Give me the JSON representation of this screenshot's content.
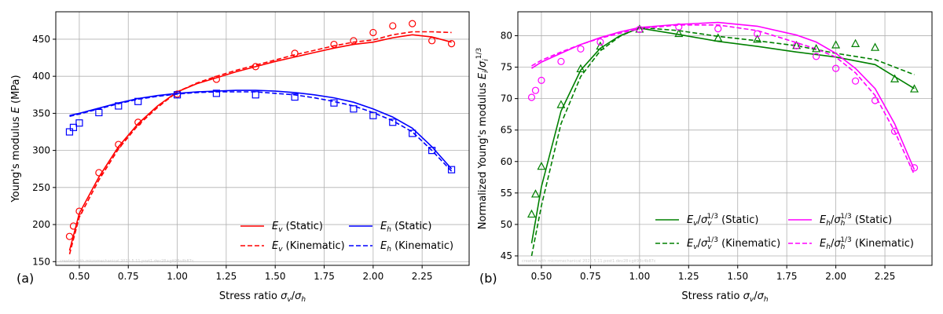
{
  "chart_data": [
    {
      "type": "line",
      "panel_label": "(a)",
      "xlabel": "Stress ratio σv/σh",
      "ylabel": "Young's modulus E (MPa)",
      "xlim": [
        0.38,
        2.49
      ],
      "ylim": [
        145,
        487
      ],
      "xticks": [
        0.5,
        0.75,
        1.0,
        1.25,
        1.5,
        1.75,
        2.0,
        2.25
      ],
      "xtick_labels": [
        "0.50",
        "0.75",
        "1.00",
        "1.25",
        "1.50",
        "1.75",
        "2.00",
        "2.25"
      ],
      "yticks": [
        150,
        200,
        250,
        300,
        350,
        400,
        450
      ],
      "ytick_labels": [
        "150",
        "200",
        "250",
        "300",
        "350",
        "400",
        "450"
      ],
      "grid": true,
      "legend_position": "lower-right",
      "watermark": "created with micromechanical 2025.5.11.post1.dev28+git98c4b87c",
      "series": [
        {
          "name": "Ev (Static)",
          "label_main": "E",
          "label_sub": "v",
          "label_tail": " (Static)",
          "style": "line",
          "dash": "solid",
          "color": "#ff0000",
          "x": [
            0.45,
            0.5,
            0.6,
            0.7,
            0.8,
            0.9,
            1.0,
            1.1,
            1.2,
            1.3,
            1.4,
            1.5,
            1.6,
            1.7,
            1.8,
            1.9,
            2.0,
            2.1,
            2.2,
            2.3,
            2.4
          ],
          "y": [
            165,
            215,
            264,
            305,
            336,
            360,
            379,
            390,
            398,
            406,
            413,
            420,
            426,
            432,
            438,
            443,
            446,
            452,
            456,
            453,
            446
          ]
        },
        {
          "name": "Ev (Kinematic)",
          "label_main": "E",
          "label_sub": "v",
          "label_tail": " (Kinematic)",
          "style": "line",
          "dash": "dashed",
          "color": "#ff0000",
          "x": [
            0.45,
            0.5,
            0.6,
            0.7,
            0.8,
            0.9,
            1.0,
            1.1,
            1.2,
            1.3,
            1.4,
            1.5,
            1.6,
            1.7,
            1.8,
            1.9,
            2.0,
            2.1,
            2.2,
            2.3,
            2.4
          ],
          "y": [
            160,
            210,
            260,
            302,
            334,
            358,
            379,
            391,
            400,
            408,
            415,
            422,
            429,
            435,
            441,
            446,
            449,
            456,
            460,
            460,
            459
          ]
        },
        {
          "name": "Eh (Static)",
          "label_main": "E",
          "label_sub": "h",
          "label_tail": " (Static)",
          "style": "line",
          "dash": "solid",
          "color": "#0000ff",
          "x": [
            0.45,
            0.5,
            0.6,
            0.7,
            0.8,
            0.9,
            1.0,
            1.1,
            1.2,
            1.3,
            1.4,
            1.5,
            1.6,
            1.7,
            1.8,
            1.9,
            2.0,
            2.1,
            2.2,
            2.3,
            2.4
          ],
          "y": [
            347,
            350,
            357,
            364,
            370,
            374,
            377,
            379,
            380,
            381,
            381,
            380,
            378,
            375,
            371,
            365,
            356,
            345,
            330,
            305,
            275
          ]
        },
        {
          "name": "Eh (Kinematic)",
          "label_main": "E",
          "label_sub": "h",
          "label_tail": " (Kinematic)",
          "style": "line",
          "dash": "dashed",
          "color": "#0000ff",
          "x": [
            0.45,
            0.5,
            0.6,
            0.7,
            0.8,
            0.9,
            1.0,
            1.1,
            1.2,
            1.3,
            1.4,
            1.5,
            1.6,
            1.7,
            1.8,
            1.9,
            2.0,
            2.1,
            2.2,
            2.3,
            2.4
          ],
          "y": [
            346,
            349,
            356,
            363,
            369,
            373,
            376,
            378,
            379,
            379,
            379,
            377,
            375,
            371,
            366,
            360,
            351,
            340,
            325,
            300,
            272
          ]
        },
        {
          "name": "Ev measured",
          "style": "marker",
          "marker": "circle",
          "color": "#ff0000",
          "x": [
            0.45,
            0.47,
            0.5,
            0.6,
            0.7,
            0.8,
            1.0,
            1.2,
            1.4,
            1.6,
            1.8,
            1.9,
            2.0,
            2.1,
            2.2,
            2.3,
            2.4
          ],
          "y": [
            184,
            198,
            218,
            270,
            308,
            338,
            376,
            396,
            413,
            431,
            443,
            448,
            459,
            468,
            471,
            448,
            444
          ]
        },
        {
          "name": "Eh measured",
          "style": "marker",
          "marker": "square",
          "color": "#0000ff",
          "x": [
            0.45,
            0.47,
            0.5,
            0.6,
            0.7,
            0.8,
            1.0,
            1.2,
            1.4,
            1.6,
            1.8,
            1.9,
            2.0,
            2.1,
            2.2,
            2.3,
            2.4
          ],
          "y": [
            325,
            331,
            337,
            351,
            360,
            366,
            375,
            377,
            375,
            372,
            364,
            356,
            347,
            338,
            323,
            300,
            274
          ]
        }
      ]
    },
    {
      "type": "line",
      "panel_label": "(b)",
      "xlabel": "Stress ratio σv/σh",
      "ylabel": "Normalized Young's modulus Ei/σi^1/3",
      "xlim": [
        0.38,
        2.49
      ],
      "ylim": [
        43.5,
        83.8
      ],
      "xticks": [
        0.5,
        0.75,
        1.0,
        1.25,
        1.5,
        1.75,
        2.0,
        2.25
      ],
      "xtick_labels": [
        "0.50",
        "0.75",
        "1.00",
        "1.25",
        "1.50",
        "1.75",
        "2.00",
        "2.25"
      ],
      "yticks": [
        45,
        50,
        55,
        60,
        65,
        70,
        75,
        80
      ],
      "ytick_labels": [
        "45",
        "50",
        "55",
        "60",
        "65",
        "70",
        "75",
        "80"
      ],
      "grid": true,
      "legend_position": "lower-right",
      "watermark": "created with micromechanical 2025.5.11.post1.dev28+git98c4b87c",
      "series": [
        {
          "name": "Ev/σv^1/3 (Static)",
          "label_main": "E",
          "label_sub": "v",
          "label_den": "σ",
          "label_den_sub": "v",
          "label_tail": " (Static)",
          "style": "line",
          "dash": "solid",
          "color": "#008000",
          "x": [
            0.45,
            0.5,
            0.6,
            0.7,
            0.8,
            0.9,
            1.0,
            1.2,
            1.4,
            1.6,
            1.8,
            2.0,
            2.2,
            2.4
          ],
          "y": [
            47,
            56,
            68,
            74.5,
            78,
            80,
            81.2,
            80.2,
            79.1,
            78.3,
            77.4,
            76.6,
            75.4,
            71.6
          ]
        },
        {
          "name": "Ev/σv^1/3 (Kinematic)",
          "label_main": "E",
          "label_sub": "v",
          "label_den": "σ",
          "label_den_sub": "v",
          "label_tail": " (Kinematic)",
          "style": "line",
          "dash": "dashed",
          "color": "#008000",
          "x": [
            0.45,
            0.5,
            0.6,
            0.7,
            0.8,
            0.9,
            1.0,
            1.2,
            1.4,
            1.6,
            1.8,
            2.0,
            2.2,
            2.4
          ],
          "y": [
            45,
            53,
            66,
            73.5,
            77.6,
            79.9,
            81.3,
            80.8,
            79.9,
            79.2,
            78.4,
            77.2,
            76.2,
            73.8
          ]
        },
        {
          "name": "Eh/σh^1/3 (Static)",
          "label_main": "E",
          "label_sub": "h",
          "label_den": "σ",
          "label_den_sub": "h",
          "label_tail": " (Static)",
          "style": "line",
          "dash": "solid",
          "color": "#ff00ff",
          "x": [
            0.45,
            0.5,
            0.6,
            0.7,
            0.8,
            0.9,
            1.0,
            1.2,
            1.4,
            1.6,
            1.8,
            1.9,
            2.0,
            2.1,
            2.2,
            2.3,
            2.4
          ],
          "y": [
            74.8,
            75.8,
            77.2,
            78.6,
            79.7,
            80.6,
            81.3,
            81.8,
            82.1,
            81.5,
            80.1,
            79,
            77.2,
            74.8,
            71.6,
            66,
            58.7
          ]
        },
        {
          "name": "Eh/σh^1/3 (Kinematic)",
          "label_main": "E",
          "label_sub": "h",
          "label_den": "σ",
          "label_den_sub": "h",
          "label_tail": " (Kinematic)",
          "style": "line",
          "dash": "dashed",
          "color": "#ff00ff",
          "x": [
            0.45,
            0.5,
            0.6,
            0.7,
            0.8,
            0.9,
            1.0,
            1.2,
            1.4,
            1.6,
            1.8,
            1.9,
            2.0,
            2.1,
            2.2,
            2.3,
            2.4
          ],
          "y": [
            75.2,
            76.1,
            77.4,
            78.6,
            79.6,
            80.4,
            81.1,
            81.7,
            81.7,
            80.8,
            78.9,
            77.9,
            76.6,
            74.1,
            70.5,
            64.8,
            57.9
          ]
        },
        {
          "name": "Ev/σv^1/3 measured",
          "style": "marker",
          "marker": "triangle",
          "color": "#008000",
          "x": [
            0.45,
            0.47,
            0.5,
            0.6,
            0.7,
            0.8,
            1.0,
            1.2,
            1.4,
            1.6,
            1.8,
            1.9,
            2.0,
            2.1,
            2.2,
            2.3,
            2.4
          ],
          "y": [
            51.6,
            54.8,
            59.2,
            69,
            74.7,
            78.3,
            81,
            80.3,
            79.6,
            79.4,
            78.4,
            77.9,
            78.5,
            78.7,
            78.1,
            73.1,
            71.5
          ]
        },
        {
          "name": "Eh/σh^1/3 measured",
          "style": "marker",
          "marker": "circle",
          "color": "#ff00ff",
          "x": [
            0.45,
            0.47,
            0.5,
            0.6,
            0.7,
            0.8,
            1.0,
            1.2,
            1.4,
            1.6,
            1.8,
            1.9,
            2.0,
            2.1,
            2.2,
            2.3,
            2.4
          ],
          "y": [
            70.2,
            71.3,
            72.9,
            75.9,
            77.9,
            79,
            81,
            81.4,
            81.1,
            80.3,
            78.4,
            76.7,
            74.8,
            72.8,
            69.7,
            64.8,
            59
          ]
        }
      ]
    }
  ]
}
